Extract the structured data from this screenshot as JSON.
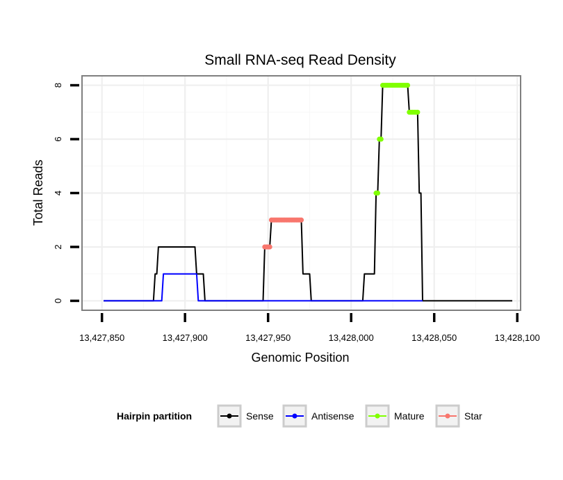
{
  "chart_data": {
    "type": "line",
    "title": "Small RNA-seq Read Density",
    "xlabel": "Genomic Position",
    "ylabel": "Total Reads",
    "xlim": [
      13427838,
      13428102
    ],
    "ylim": [
      -0.35,
      8.35
    ],
    "x_ticks": [
      13427850,
      13427900,
      13427950,
      13428000,
      13428050,
      13428100
    ],
    "x_tick_labels": [
      "13,427,850",
      "13,427,900",
      "13,427,950",
      "13,428,000",
      "13,428,050",
      "13,428,100"
    ],
    "y_ticks": [
      0,
      2,
      4,
      6,
      8
    ],
    "y_tick_labels": [
      "0",
      "2",
      "4",
      "6",
      "8"
    ],
    "grid": true,
    "legend": {
      "title": "Hairpin partition",
      "position": "bottom",
      "entries": [
        "Sense",
        "Antisense",
        "Mature",
        "Star"
      ]
    },
    "series": [
      {
        "name": "Sense",
        "color": "#000000",
        "style": "line",
        "points": [
          [
            13427851,
            0
          ],
          [
            13427881,
            0
          ],
          [
            13427882,
            1
          ],
          [
            13427883,
            1
          ],
          [
            13427884,
            2
          ],
          [
            13427906,
            2
          ],
          [
            13427907,
            1
          ],
          [
            13427911,
            1
          ],
          [
            13427912,
            0
          ],
          [
            13427947,
            0
          ],
          [
            13427948,
            2
          ],
          [
            13427951,
            2
          ],
          [
            13427952,
            3
          ],
          [
            13427970,
            3
          ],
          [
            13427971,
            1
          ],
          [
            13427975,
            1
          ],
          [
            13427976,
            0
          ],
          [
            13428007,
            0
          ],
          [
            13428008,
            1
          ],
          [
            13428014,
            1
          ],
          [
            13428015,
            4
          ],
          [
            13428016,
            4
          ],
          [
            13428017,
            6
          ],
          [
            13428018,
            6
          ],
          [
            13428019,
            8
          ],
          [
            13428034,
            8
          ],
          [
            13428035,
            7
          ],
          [
            13428040,
            7
          ],
          [
            13428041,
            4
          ],
          [
            13428042,
            4
          ],
          [
            13428043,
            0
          ],
          [
            13428097,
            0
          ]
        ]
      },
      {
        "name": "Antisense",
        "color": "#0000ff",
        "style": "line",
        "points": [
          [
            13427851,
            0
          ],
          [
            13427886,
            0
          ],
          [
            13427887,
            1
          ],
          [
            13427907,
            1
          ],
          [
            13427908,
            0
          ],
          [
            13428043,
            0
          ]
        ]
      },
      {
        "name": "Mature",
        "color": "#80ff00",
        "style": "points",
        "points": [
          [
            13428015,
            4
          ],
          [
            13428016,
            4
          ],
          [
            13428017,
            6
          ],
          [
            13428018,
            6
          ],
          [
            13428019,
            8
          ],
          [
            13428020,
            8
          ],
          [
            13428021,
            8
          ],
          [
            13428022,
            8
          ],
          [
            13428023,
            8
          ],
          [
            13428024,
            8
          ],
          [
            13428025,
            8
          ],
          [
            13428026,
            8
          ],
          [
            13428027,
            8
          ],
          [
            13428028,
            8
          ],
          [
            13428029,
            8
          ],
          [
            13428030,
            8
          ],
          [
            13428031,
            8
          ],
          [
            13428032,
            8
          ],
          [
            13428033,
            8
          ],
          [
            13428034,
            8
          ],
          [
            13428035,
            7
          ],
          [
            13428036,
            7
          ],
          [
            13428037,
            7
          ],
          [
            13428038,
            7
          ],
          [
            13428039,
            7
          ],
          [
            13428040,
            7
          ]
        ]
      },
      {
        "name": "Star",
        "color": "#f8766d",
        "style": "points",
        "points": [
          [
            13427948,
            2
          ],
          [
            13427949,
            2
          ],
          [
            13427950,
            2
          ],
          [
            13427951,
            2
          ],
          [
            13427952,
            3
          ],
          [
            13427953,
            3
          ],
          [
            13427954,
            3
          ],
          [
            13427955,
            3
          ],
          [
            13427956,
            3
          ],
          [
            13427957,
            3
          ],
          [
            13427958,
            3
          ],
          [
            13427959,
            3
          ],
          [
            13427960,
            3
          ],
          [
            13427961,
            3
          ],
          [
            13427962,
            3
          ],
          [
            13427963,
            3
          ],
          [
            13427964,
            3
          ],
          [
            13427965,
            3
          ],
          [
            13427966,
            3
          ],
          [
            13427967,
            3
          ],
          [
            13427968,
            3
          ],
          [
            13427969,
            3
          ],
          [
            13427970,
            3
          ]
        ]
      }
    ]
  }
}
